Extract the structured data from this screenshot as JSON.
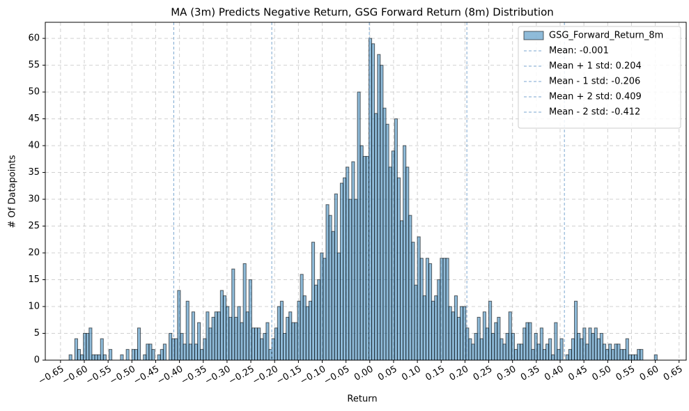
{
  "chart_data": {
    "type": "histogram",
    "title": "MA (3m) Predicts Negative Return, GSG Forward Return (8m) Distribution",
    "x_label": "Return",
    "y_label": "# Of Datapoints",
    "grid": true,
    "legend": "upper right",
    "xlim": [
      -0.682,
      0.665
    ],
    "ylim": [
      0,
      63
    ],
    "yticks": [
      0,
      5,
      10,
      15,
      20,
      25,
      30,
      35,
      40,
      45,
      50,
      55,
      60
    ],
    "xticks": [
      {
        "value": -0.65,
        "label": "−0.65"
      },
      {
        "value": -0.6,
        "label": "−0.60"
      },
      {
        "value": -0.55,
        "label": "−0.55"
      },
      {
        "value": -0.5,
        "label": "−0.50"
      },
      {
        "value": -0.45,
        "label": "−0.45"
      },
      {
        "value": -0.4,
        "label": "−0.40"
      },
      {
        "value": -0.35,
        "label": "−0.35"
      },
      {
        "value": -0.3,
        "label": "−0.30"
      },
      {
        "value": -0.25,
        "label": "−0.25"
      },
      {
        "value": -0.2,
        "label": "−0.20"
      },
      {
        "value": -0.15,
        "label": "−0.15"
      },
      {
        "value": -0.1,
        "label": "−0.10"
      },
      {
        "value": -0.05,
        "label": "−0.05"
      },
      {
        "value": 0,
        "label": "0.00"
      },
      {
        "value": 0.05,
        "label": "0.05"
      },
      {
        "value": 0.1,
        "label": "0.10"
      },
      {
        "value": 0.15,
        "label": "0.15"
      },
      {
        "value": 0.2,
        "label": "0.20"
      },
      {
        "value": 0.25,
        "label": "0.25"
      },
      {
        "value": 0.3,
        "label": "0.30"
      },
      {
        "value": 0.35,
        "label": "0.35"
      },
      {
        "value": 0.4,
        "label": "0.40"
      },
      {
        "value": 0.45,
        "label": "0.45"
      },
      {
        "value": 0.5,
        "label": "0.50"
      },
      {
        "value": 0.55,
        "label": "0.55"
      },
      {
        "value": 0.6,
        "label": "0.60"
      },
      {
        "value": 0.65,
        "label": "0.65"
      }
    ],
    "bins": [
      -0.632,
      -0.626,
      -0.62,
      -0.614,
      -0.608,
      -0.602,
      -0.596,
      -0.59,
      -0.584,
      -0.578,
      -0.572,
      -0.566,
      -0.56,
      -0.554,
      -0.548,
      -0.542,
      -0.536,
      -0.53,
      -0.524,
      -0.518,
      -0.512,
      -0.506,
      -0.5,
      -0.494,
      -0.488,
      -0.482,
      -0.476,
      -0.47,
      -0.464,
      -0.458,
      -0.452,
      -0.446,
      -0.44,
      -0.434,
      -0.428,
      -0.422,
      -0.416,
      -0.41,
      -0.404,
      -0.398,
      -0.392,
      -0.386,
      -0.38,
      -0.374,
      -0.368,
      -0.362,
      -0.356,
      -0.35,
      -0.344,
      -0.338,
      -0.332,
      -0.326,
      -0.32,
      -0.314,
      -0.308,
      -0.302,
      -0.296,
      -0.29,
      -0.284,
      -0.278,
      -0.272,
      -0.266,
      -0.26,
      -0.254,
      -0.248,
      -0.242,
      -0.236,
      -0.23,
      -0.224,
      -0.218,
      -0.212,
      -0.206,
      -0.2,
      -0.194,
      -0.188,
      -0.182,
      -0.176,
      -0.17,
      -0.164,
      -0.158,
      -0.152,
      -0.146,
      -0.14,
      -0.134,
      -0.128,
      -0.122,
      -0.116,
      -0.11,
      -0.104,
      -0.098,
      -0.092,
      -0.086,
      -0.08,
      -0.074,
      -0.068,
      -0.062,
      -0.056,
      -0.05,
      -0.044,
      -0.038,
      -0.032,
      -0.026,
      -0.02,
      -0.014,
      -0.008,
      -0.002,
      0.004,
      0.01,
      0.016,
      0.022,
      0.028,
      0.034,
      0.04,
      0.046,
      0.052,
      0.058,
      0.064,
      0.07,
      0.076,
      0.082,
      0.088,
      0.094,
      0.1,
      0.106,
      0.112,
      0.118,
      0.124,
      0.13,
      0.136,
      0.142,
      0.148,
      0.154,
      0.16,
      0.166,
      0.172,
      0.178,
      0.184,
      0.19,
      0.196,
      0.202,
      0.208,
      0.214,
      0.22,
      0.226,
      0.232,
      0.238,
      0.244,
      0.25,
      0.256,
      0.262,
      0.268,
      0.274,
      0.28,
      0.286,
      0.292,
      0.298,
      0.304,
      0.31,
      0.316,
      0.322,
      0.328,
      0.334,
      0.34,
      0.346,
      0.352,
      0.358,
      0.364,
      0.37,
      0.376,
      0.382,
      0.388,
      0.394,
      0.4,
      0.406,
      0.412,
      0.418,
      0.424,
      0.43,
      0.436,
      0.442,
      0.448,
      0.454,
      0.46,
      0.466,
      0.472,
      0.478,
      0.484,
      0.49,
      0.496,
      0.502,
      0.508,
      0.514,
      0.52,
      0.526,
      0.532,
      0.538,
      0.544,
      0.55,
      0.556,
      0.562,
      0.568,
      0.574,
      0.58,
      0.586,
      0.592,
      0.598,
      0.604
    ],
    "series": [
      {
        "name": "GSG_Forward_Return_8m",
        "color": "#1f77b4",
        "values": [
          1,
          0,
          4,
          2,
          1,
          5,
          5,
          6,
          1,
          1,
          1,
          4,
          1,
          0,
          2,
          0,
          0,
          0,
          1,
          0,
          2,
          0,
          2,
          2,
          6,
          0,
          1,
          3,
          3,
          2,
          0,
          1,
          2,
          3,
          0,
          5,
          4,
          4,
          13,
          5,
          3,
          11,
          3,
          9,
          3,
          7,
          2,
          4,
          9,
          6,
          8,
          9,
          9,
          13,
          12,
          10,
          8,
          17,
          8,
          10,
          7,
          18,
          9,
          15,
          6,
          6,
          6,
          4,
          5,
          7,
          2,
          4,
          6,
          10,
          11,
          5,
          8,
          9,
          7,
          7,
          11,
          16,
          12,
          10,
          11,
          22,
          14,
          15,
          20,
          19,
          29,
          27,
          24,
          31,
          20,
          33,
          34,
          36,
          30,
          37,
          30,
          50,
          40,
          38,
          38,
          60,
          59,
          46,
          57,
          55,
          47,
          44,
          36,
          39,
          45,
          34,
          26,
          40,
          36,
          27,
          22,
          14,
          23,
          19,
          12,
          19,
          18,
          11,
          12,
          15,
          19,
          19,
          19,
          10,
          9,
          12,
          8,
          10,
          10,
          6,
          4,
          3,
          5,
          8,
          4,
          9,
          6,
          11,
          5,
          7,
          8,
          4,
          3,
          5,
          9,
          5,
          2,
          3,
          3,
          6,
          7,
          7,
          2,
          5,
          3,
          6,
          2,
          3,
          4,
          1,
          7,
          2,
          4,
          0,
          1,
          2,
          4,
          11,
          5,
          4,
          6,
          3,
          6,
          5,
          6,
          4,
          5,
          3,
          2,
          3,
          2,
          3,
          3,
          2,
          2,
          4,
          1,
          1,
          1,
          2,
          2,
          0,
          0,
          0,
          0,
          1
        ]
      }
    ],
    "vlines": [
      {
        "name": "Mean: -0.001",
        "value": -0.001,
        "color": "#7aa6d0"
      },
      {
        "name": "Mean + 1 std: 0.204",
        "value": 0.204,
        "color": "#7aa6d0"
      },
      {
        "name": "Mean - 1 std: -0.206",
        "value": -0.206,
        "color": "#7aa6d0"
      },
      {
        "name": "Mean + 2 std: 0.409",
        "value": 0.409,
        "color": "#7aa6d0"
      },
      {
        "name": "Mean - 2 std: -0.412",
        "value": -0.412,
        "color": "#7aa6d0"
      }
    ]
  }
}
